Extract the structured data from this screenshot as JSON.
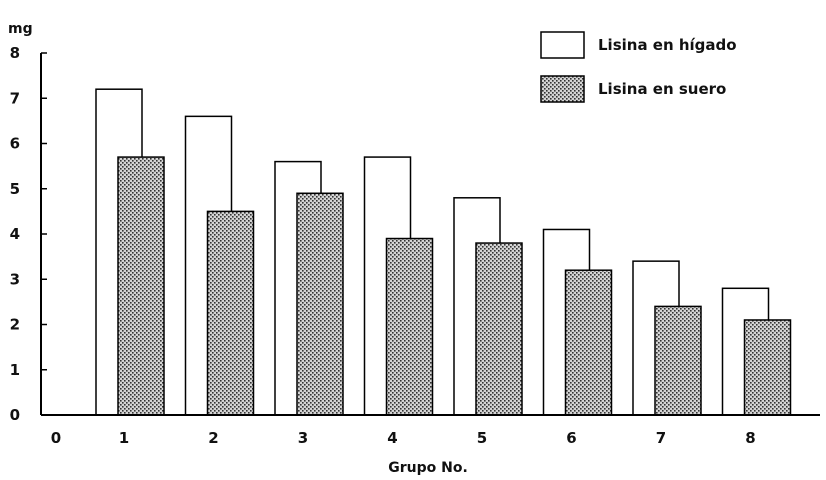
{
  "chart_data": {
    "type": "bar",
    "categories": [
      "1",
      "2",
      "3",
      "4",
      "5",
      "6",
      "7",
      "8"
    ],
    "x_origin_label": "0",
    "series": [
      {
        "name": "Lisina en hígado",
        "values": [
          7.2,
          6.6,
          5.6,
          5.7,
          4.8,
          4.1,
          3.4,
          2.8
        ],
        "fill": "#ffffff"
      },
      {
        "name": "Lisina en suero",
        "values": [
          5.7,
          4.5,
          4.9,
          3.9,
          3.8,
          3.2,
          2.4,
          2.1
        ],
        "fill": "stippled"
      }
    ],
    "xlabel": "Grupo No.",
    "ylabel": "mg",
    "ylim": [
      0,
      8
    ],
    "yticks": [
      "0",
      "1",
      "2",
      "3",
      "4",
      "5",
      "6",
      "7",
      "8"
    ],
    "legend": "top-right",
    "grid": false
  }
}
